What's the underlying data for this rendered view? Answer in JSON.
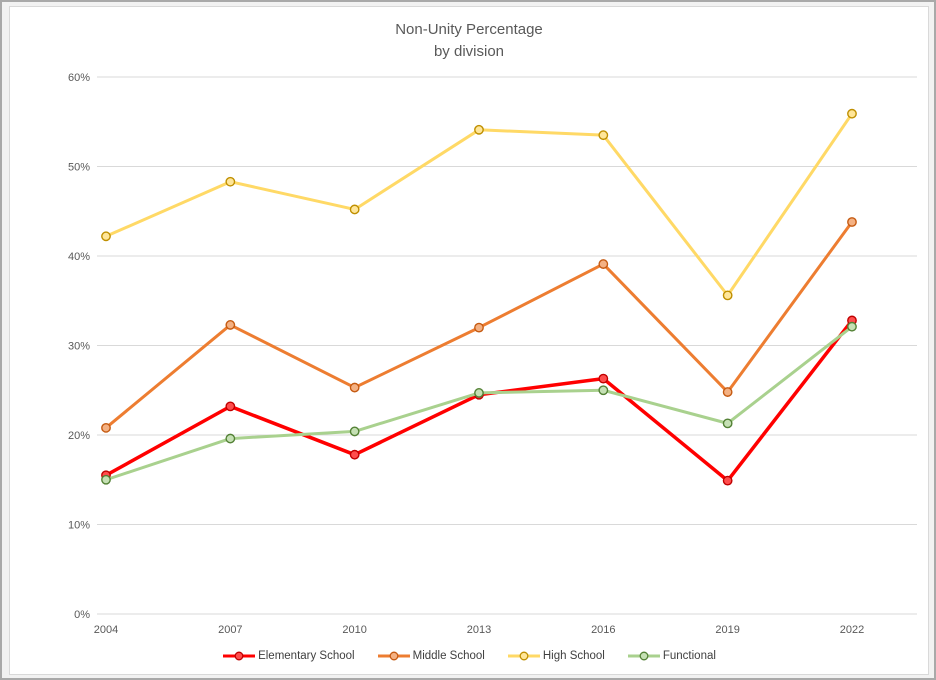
{
  "chart_data": {
    "type": "line",
    "title": "Non-Unity Percentage",
    "subtitle": "by division",
    "categories": [
      "2004",
      "2007",
      "2010",
      "2013",
      "2016",
      "2019",
      "2022"
    ],
    "series": [
      {
        "name": "Elementary School",
        "values": [
          15.5,
          23.2,
          17.8,
          24.5,
          26.3,
          14.9,
          32.8
        ],
        "line_color": "#ff0000",
        "marker_fill": "#ff4d4d",
        "marker_stroke": "#c00000",
        "line_width": 3.5
      },
      {
        "name": "Middle School",
        "values": [
          20.8,
          32.3,
          25.3,
          32.0,
          39.1,
          24.8,
          43.8
        ],
        "line_color": "#ed7d31",
        "marker_fill": "#f4b183",
        "marker_stroke": "#c55a11",
        "line_width": 3
      },
      {
        "name": "High School",
        "values": [
          42.2,
          48.3,
          45.2,
          54.1,
          53.5,
          35.6,
          55.9
        ],
        "line_color": "#ffd966",
        "marker_fill": "#ffe699",
        "marker_stroke": "#bf8f00",
        "line_width": 3
      },
      {
        "name": "Functional",
        "values": [
          15.0,
          19.6,
          20.4,
          24.7,
          25.0,
          21.3,
          32.1
        ],
        "line_color": "#a9d18e",
        "marker_fill": "#c5e0b4",
        "marker_stroke": "#538135",
        "line_width": 3
      }
    ],
    "y_axis": {
      "min": 0,
      "max": 60,
      "step": 10,
      "tick_labels": [
        "0%",
        "10%",
        "20%",
        "30%",
        "40%",
        "50%",
        "60%"
      ]
    },
    "grid": true,
    "gridline_color": "#d9d9d9",
    "legend_position": "bottom"
  }
}
